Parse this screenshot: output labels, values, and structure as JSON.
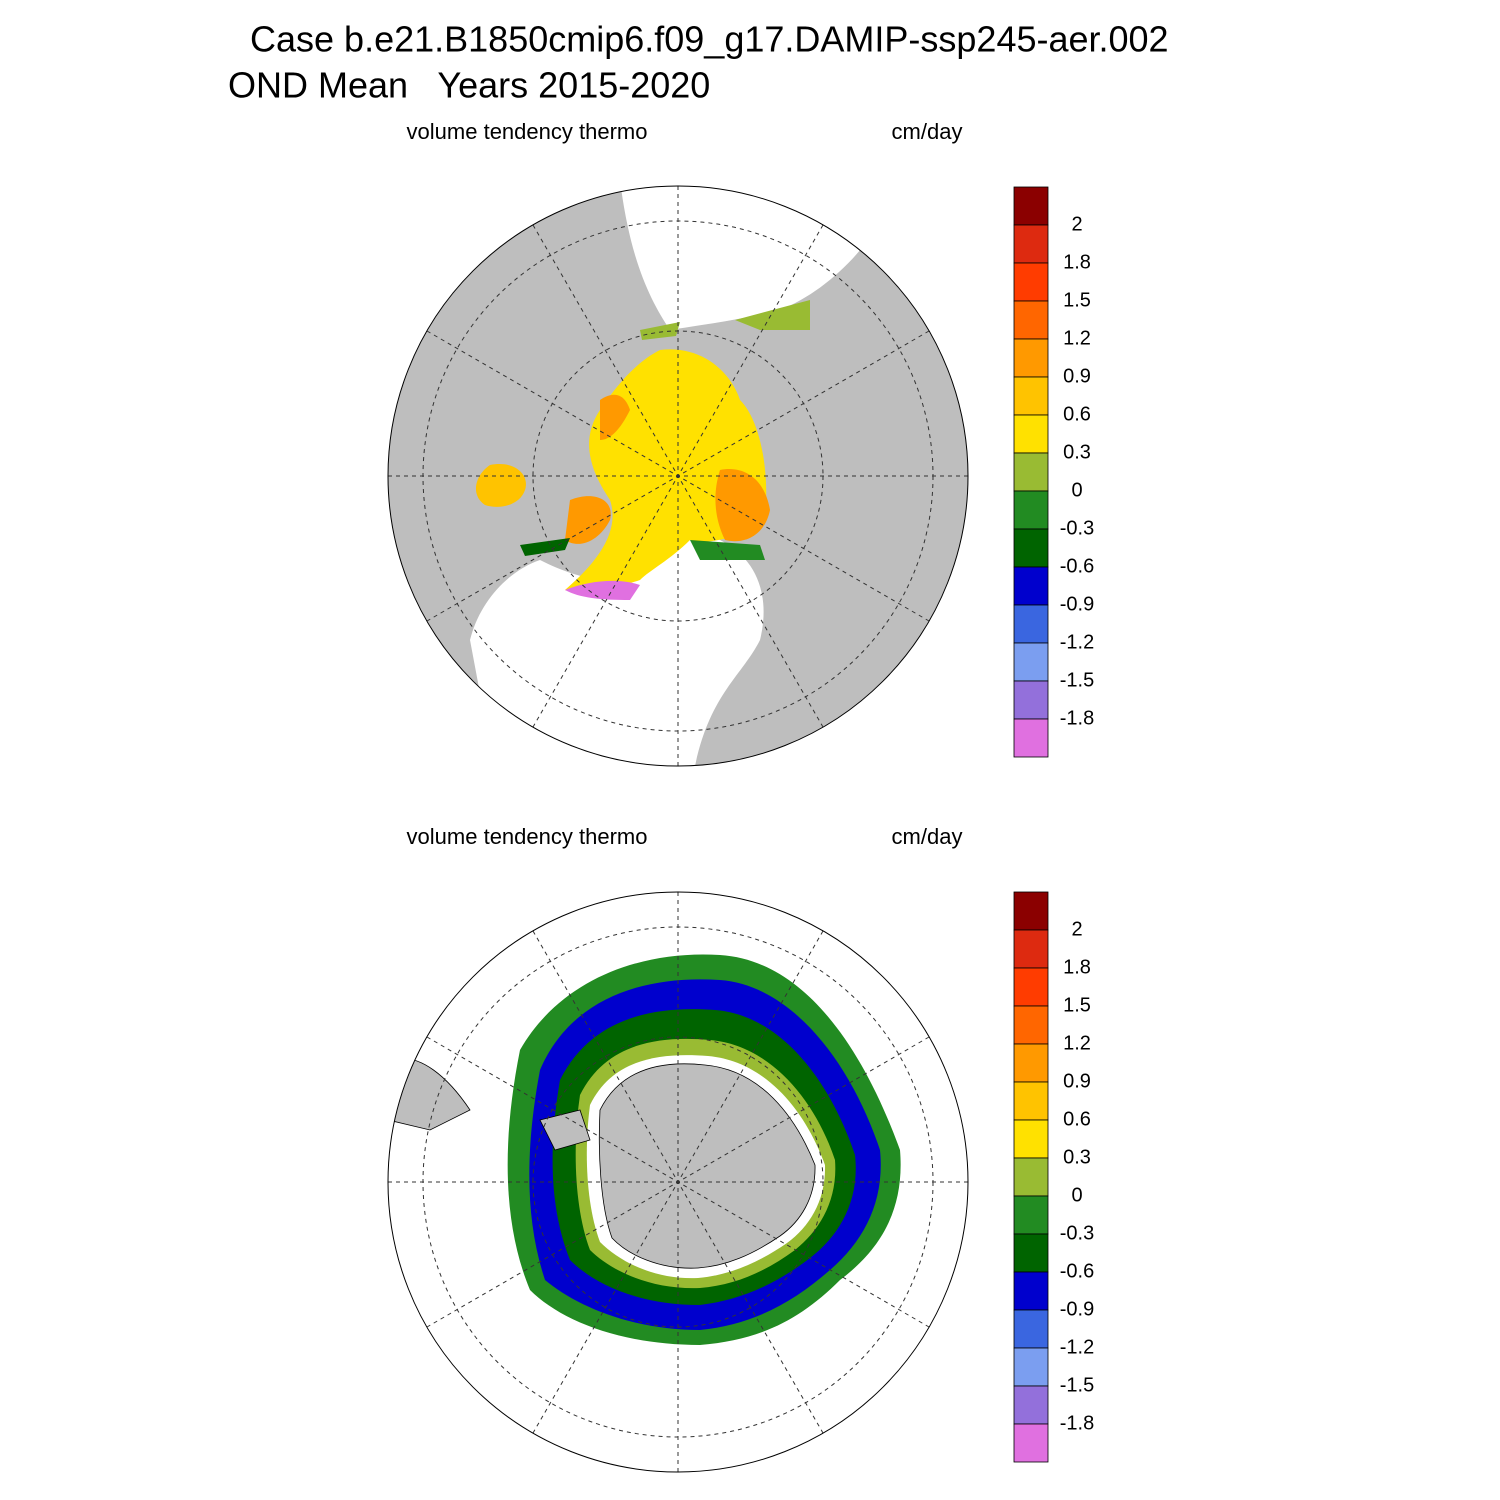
{
  "header": {
    "title": "Case b.e21.B1850cmip6.f09_g17.DAMIP-ssp245-aer.002",
    "subtitle": "OND Mean   Years 2015-2020"
  },
  "colorbar_colors": [
    "#8b0000",
    "#dd2a10",
    "#ff3c00",
    "#ff6600",
    "#ff9900",
    "#ffc300",
    "#ffe100",
    "#99bb33",
    "#228b22",
    "#006400",
    "#0000cd",
    "#3a66e0",
    "#7b9ef0",
    "#9370db",
    "#e070e0"
  ],
  "panels": [
    {
      "left_label": "volume tendency thermo",
      "right_label": "cm/day",
      "levels": [
        2,
        1.8,
        1.5,
        1.2,
        0.9,
        0.6,
        0.3,
        0,
        -0.3,
        -0.6,
        -0.9,
        -1.2,
        -1.5,
        -1.8
      ]
    },
    {
      "left_label": "volume tendency thermo",
      "right_label": "cm/day",
      "levels": [
        2,
        1.8,
        1.5,
        1.2,
        0.9,
        0.6,
        0.3,
        0,
        -0.3,
        -0.6,
        -0.9,
        -1.2,
        -1.5,
        -1.8
      ]
    }
  ]
}
